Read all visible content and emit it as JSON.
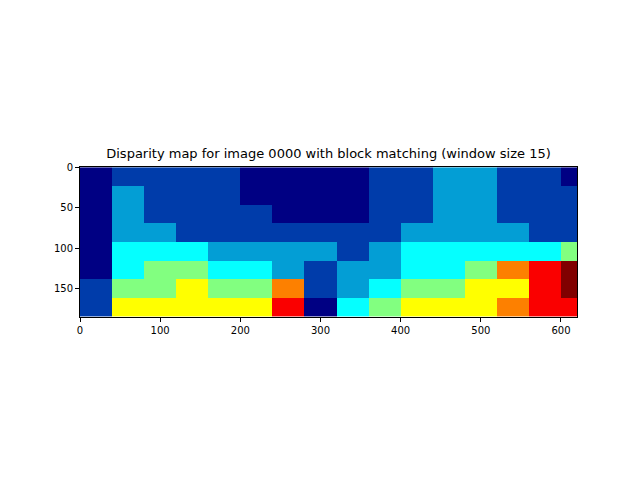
{
  "chart_data": {
    "type": "heatmap",
    "title": "Disparity map for image 0000 with block matching (window size 15)",
    "color": "Jet",
    "x": [
      20,
      60,
      100,
      140,
      180,
      220,
      260,
      300,
      340,
      380,
      420,
      460,
      500,
      540,
      580,
      620
    ],
    "y": [
      12,
      35,
      58,
      81,
      104,
      127,
      150,
      173
    ],
    "cells": [
      [
        1,
        2,
        2,
        2,
        2,
        1,
        1,
        1,
        1,
        2,
        2,
        3,
        3,
        2,
        2,
        1
      ],
      [
        1,
        3,
        2,
        2,
        2,
        1,
        1,
        1,
        1,
        2,
        2,
        3,
        3,
        2,
        2,
        2
      ],
      [
        1,
        3,
        2,
        2,
        2,
        2,
        1,
        1,
        1,
        2,
        2,
        3,
        3,
        2,
        2,
        2
      ],
      [
        1,
        3,
        3,
        2,
        2,
        2,
        2,
        2,
        2,
        2,
        3,
        3,
        3,
        3,
        2,
        2
      ],
      [
        1,
        4,
        4,
        4,
        3,
        3,
        3,
        3,
        2,
        3,
        4,
        4,
        4,
        4,
        4,
        5
      ],
      [
        1,
        4,
        5,
        5,
        4,
        4,
        3,
        2,
        3,
        3,
        4,
        4,
        5,
        7,
        8,
        9
      ],
      [
        2,
        5,
        5,
        6,
        5,
        5,
        7,
        2,
        3,
        4,
        5,
        5,
        6,
        6,
        8,
        9
      ],
      [
        2,
        6,
        6,
        6,
        6,
        6,
        8,
        1,
        4,
        5,
        6,
        6,
        6,
        7,
        8,
        8
      ]
    ],
    "xlim": [
      0,
      620
    ],
    "ylim": [
      185,
      0
    ],
    "xticks": [
      0,
      100,
      200,
      300,
      400,
      500,
      600
    ],
    "yticks": [
      0,
      50,
      100,
      150
    ]
  }
}
